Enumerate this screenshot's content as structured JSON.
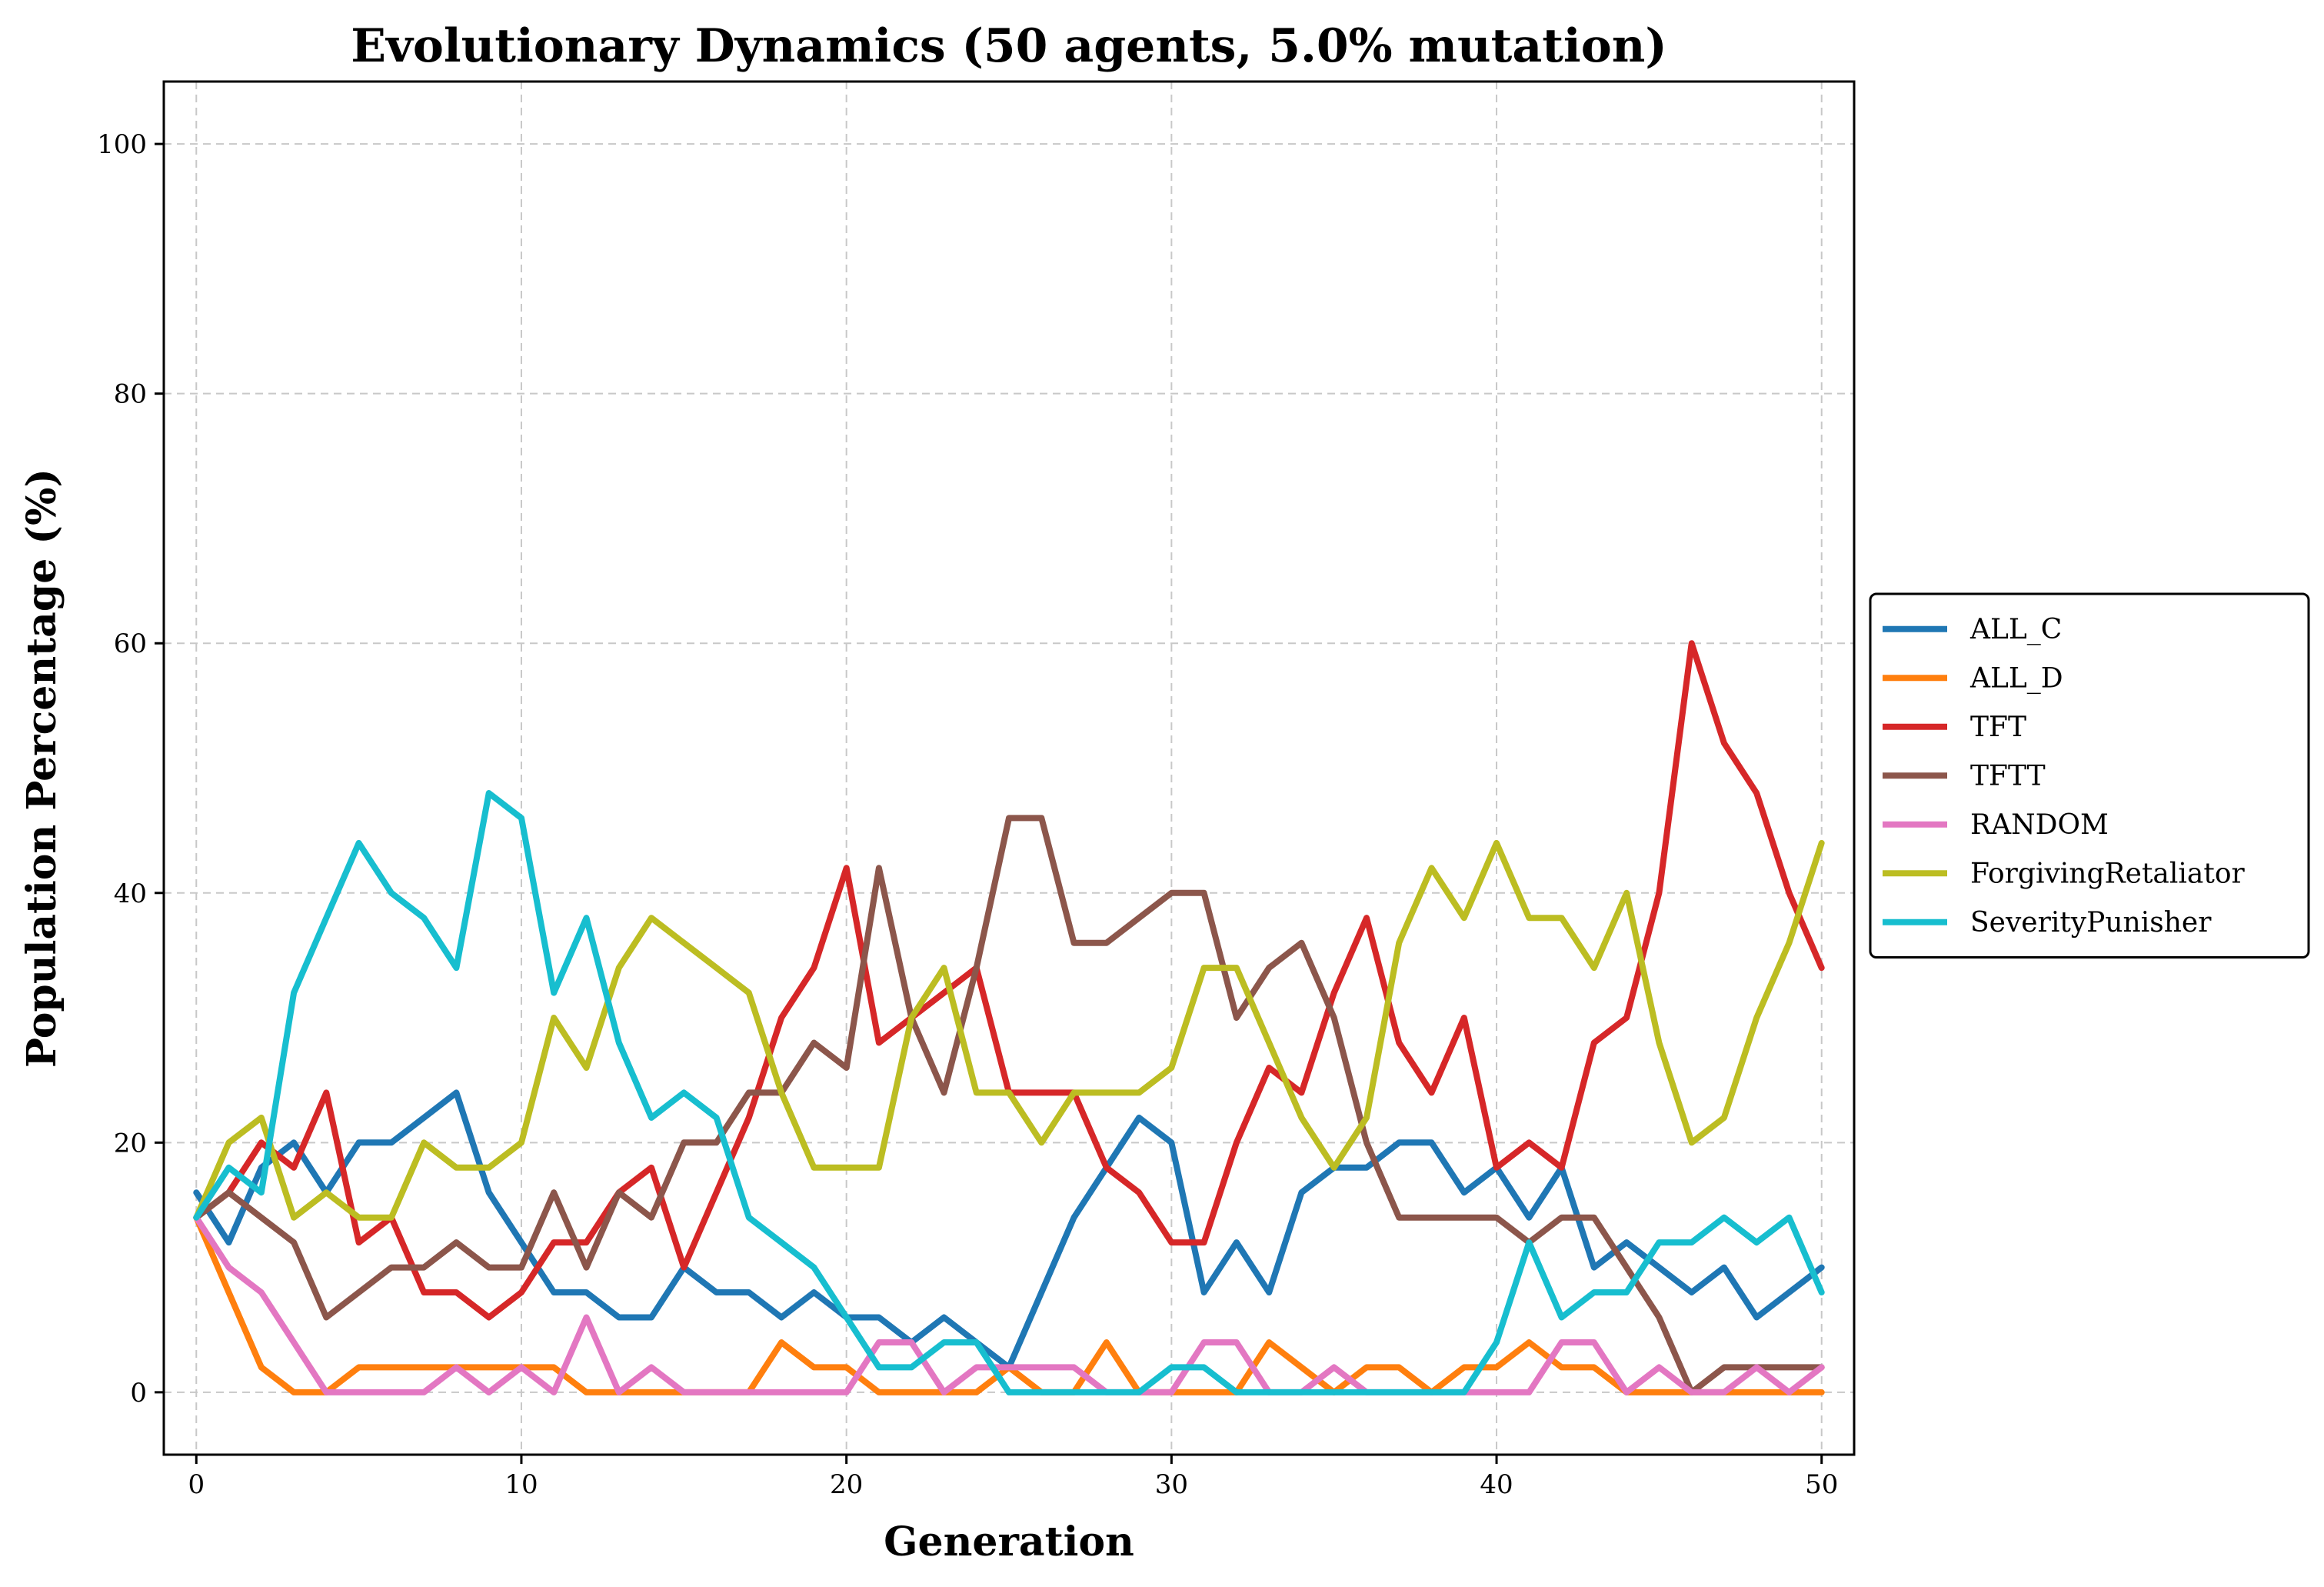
{
  "chart_data": {
    "type": "line",
    "title": "Evolutionary Dynamics (50 agents, 5.0% mutation)",
    "xlabel": "Generation",
    "ylabel": "Population Percentage (%)",
    "xlim": [
      -1,
      51
    ],
    "ylim": [
      -5,
      105
    ],
    "xticks": [
      0,
      10,
      20,
      30,
      40,
      50
    ],
    "yticks": [
      0,
      20,
      40,
      60,
      80,
      100
    ],
    "grid": true,
    "legend_position": "right",
    "series": [
      {
        "name": "ALL_C",
        "color": "#1f77b4",
        "values": [
          16,
          12,
          18,
          20,
          16,
          20,
          20,
          22,
          24,
          16,
          12,
          8,
          8,
          6,
          6,
          10,
          8,
          8,
          6,
          8,
          6,
          6,
          4,
          6,
          4,
          2,
          8,
          14,
          18,
          22,
          20,
          8,
          12,
          8,
          16,
          18,
          18,
          20,
          20,
          16,
          18,
          14,
          18,
          10,
          12,
          10,
          8,
          10,
          6,
          8,
          10
        ]
      },
      {
        "name": "ALL_D",
        "color": "#ff7f0e",
        "values": [
          14,
          8,
          2,
          0,
          0,
          2,
          2,
          2,
          2,
          2,
          2,
          2,
          0,
          0,
          0,
          0,
          0,
          0,
          4,
          2,
          2,
          0,
          0,
          0,
          0,
          2,
          0,
          0,
          4,
          0,
          0,
          0,
          0,
          4,
          2,
          0,
          2,
          2,
          0,
          2,
          2,
          4,
          2,
          2,
          0,
          0,
          0,
          0,
          0,
          0,
          0
        ]
      },
      {
        "name": "TFT",
        "color": "#d62728",
        "values": [
          14,
          16,
          20,
          18,
          24,
          12,
          14,
          8,
          8,
          6,
          8,
          12,
          12,
          16,
          18,
          10,
          16,
          22,
          30,
          34,
          42,
          28,
          30,
          32,
          34,
          24,
          24,
          24,
          18,
          16,
          12,
          12,
          20,
          26,
          24,
          32,
          38,
          28,
          24,
          30,
          18,
          20,
          18,
          28,
          30,
          40,
          60,
          52,
          48,
          40,
          34
        ]
      },
      {
        "name": "TFTT",
        "color": "#8c564b",
        "values": [
          14,
          16,
          14,
          12,
          6,
          8,
          10,
          10,
          12,
          10,
          10,
          16,
          10,
          16,
          14,
          20,
          20,
          24,
          24,
          28,
          26,
          42,
          30,
          24,
          34,
          46,
          46,
          36,
          36,
          38,
          40,
          40,
          30,
          34,
          36,
          30,
          20,
          14,
          14,
          14,
          14,
          12,
          14,
          14,
          10,
          6,
          0,
          2,
          2,
          2,
          2
        ]
      },
      {
        "name": "RANDOM",
        "color": "#e377c2",
        "values": [
          14,
          10,
          8,
          4,
          0,
          0,
          0,
          0,
          2,
          0,
          2,
          0,
          6,
          0,
          2,
          0,
          0,
          0,
          0,
          0,
          0,
          4,
          4,
          0,
          2,
          2,
          2,
          2,
          0,
          0,
          0,
          4,
          4,
          0,
          0,
          2,
          0,
          0,
          0,
          0,
          0,
          0,
          4,
          4,
          0,
          2,
          0,
          0,
          2,
          0,
          2
        ]
      },
      {
        "name": "ForgivingRetaliator",
        "color": "#bcbd22",
        "values": [
          14,
          20,
          22,
          14,
          16,
          14,
          14,
          20,
          18,
          18,
          20,
          30,
          26,
          34,
          38,
          36,
          34,
          32,
          24,
          18,
          18,
          18,
          30,
          34,
          24,
          24,
          20,
          24,
          24,
          24,
          26,
          34,
          34,
          28,
          22,
          18,
          22,
          36,
          42,
          38,
          44,
          38,
          38,
          34,
          40,
          28,
          20,
          22,
          30,
          36,
          44
        ]
      },
      {
        "name": "SeverityPunisher",
        "color": "#17becf",
        "values": [
          14,
          18,
          16,
          32,
          38,
          44,
          40,
          38,
          34,
          48,
          46,
          32,
          38,
          28,
          22,
          24,
          22,
          14,
          12,
          10,
          6,
          2,
          2,
          4,
          4,
          0,
          0,
          0,
          0,
          0,
          2,
          2,
          0,
          0,
          0,
          0,
          0,
          0,
          0,
          0,
          4,
          12,
          6,
          8,
          8,
          12,
          12,
          14,
          12,
          14,
          8
        ]
      }
    ]
  }
}
